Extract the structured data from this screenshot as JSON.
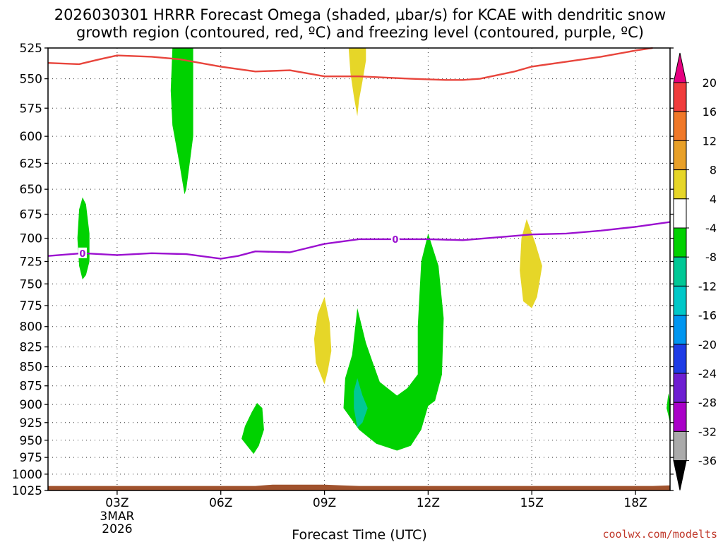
{
  "title_lines": [
    "2026030301 HRRR Forecast Omega (shaded, μbar/s) for KCAE with dendritic snow",
    "growth region (contoured, red, ºC) and freezing level (contoured, purple, ºC)"
  ],
  "credit": "coolwx.com/modelts",
  "chart_data": {
    "type": "heatmap",
    "title": "2026030301 HRRR Forecast Omega (shaded, μbar/s) for KCAE with dendritic snow growth region (contoured, red, ºC) and freezing level (contoured, purple, ºC)",
    "xlabel": "Forecast Time (UTC)",
    "ylabel": "",
    "x_axis": {
      "unit": "forecast hour (hours after 2026030301 run)",
      "range": [
        0,
        18
      ],
      "ticks": [
        {
          "value": 2,
          "label": "03Z",
          "sublabels": [
            "3MAR",
            "2026"
          ]
        },
        {
          "value": 5,
          "label": "06Z",
          "sublabels": []
        },
        {
          "value": 8,
          "label": "09Z",
          "sublabels": []
        },
        {
          "value": 11,
          "label": "12Z",
          "sublabels": []
        },
        {
          "value": 14,
          "label": "15Z",
          "sublabels": []
        },
        {
          "value": 17,
          "label": "18Z",
          "sublabels": []
        }
      ]
    },
    "y_axis": {
      "unit": "hPa",
      "scale": "log-pressure",
      "range": [
        1025,
        525
      ],
      "ticks": [
        525,
        550,
        575,
        600,
        625,
        650,
        675,
        700,
        725,
        750,
        775,
        800,
        825,
        850,
        875,
        900,
        925,
        950,
        975,
        1000,
        1025
      ]
    },
    "grid": true,
    "colorbar": {
      "placement": "right",
      "labels": [
        "20",
        "16",
        "12",
        "8",
        "4",
        "-4",
        "-8",
        "-12",
        "-16",
        "-20",
        "-24",
        "-28",
        "-32",
        "-36"
      ],
      "top_arrow_color": "#e60080",
      "bottom_arrow_color": "#000000",
      "bins": [
        {
          "range": [
            16,
            20
          ],
          "color": "#f03c3c"
        },
        {
          "range": [
            12,
            16
          ],
          "color": "#f07828"
        },
        {
          "range": [
            8,
            12
          ],
          "color": "#e8a028"
        },
        {
          "range": [
            4,
            8
          ],
          "color": "#e6d628"
        },
        {
          "range": [
            -4,
            4
          ],
          "color": "#ffffff"
        },
        {
          "range": [
            -8,
            -4
          ],
          "color": "#00d200"
        },
        {
          "range": [
            -12,
            -8
          ],
          "color": "#00c896"
        },
        {
          "range": [
            -16,
            -12
          ],
          "color": "#00c8c8"
        },
        {
          "range": [
            -20,
            -16
          ],
          "color": "#0096f0"
        },
        {
          "range": [
            -24,
            -20
          ],
          "color": "#1e3ce6"
        },
        {
          "range": [
            -28,
            -24
          ],
          "color": "#6e1ed2"
        },
        {
          "range": [
            -32,
            -28
          ],
          "color": "#aa00c8"
        },
        {
          "range": [
            -36,
            -32
          ],
          "color": "#aaaaaa"
        }
      ]
    },
    "omega_regions": [
      {
        "bin": "-8 to -4",
        "color": "#00d200",
        "outline": [
          [
            3.6,
            525
          ],
          [
            4.2,
            525
          ],
          [
            4.2,
            560
          ],
          [
            4.2,
            600
          ],
          [
            4.1,
            625
          ],
          [
            4,
            650
          ],
          [
            3.95,
            655
          ],
          [
            3.8,
            625
          ],
          [
            3.6,
            590
          ],
          [
            3.55,
            560
          ]
        ]
      },
      {
        "bin": "4 to 8",
        "color": "#e6d628",
        "outline": [
          [
            8.7,
            525
          ],
          [
            9.2,
            525
          ],
          [
            9.2,
            535
          ],
          [
            9.1,
            552
          ],
          [
            9,
            568
          ],
          [
            8.95,
            582
          ],
          [
            8.85,
            565
          ],
          [
            8.75,
            545
          ]
        ]
      },
      {
        "bin": "-8 to -4",
        "color": "#00d200",
        "outline": [
          [
            1,
            658
          ],
          [
            1.1,
            665
          ],
          [
            1.2,
            695
          ],
          [
            1.2,
            725
          ],
          [
            1.1,
            740
          ],
          [
            1,
            745
          ],
          [
            0.9,
            730
          ],
          [
            0.85,
            700
          ],
          [
            0.9,
            670
          ]
        ]
      },
      {
        "bin": "4 to 8",
        "color": "#e6d628",
        "outline": [
          [
            13.85,
            680
          ],
          [
            14.1,
            705
          ],
          [
            14.3,
            730
          ],
          [
            14.15,
            765
          ],
          [
            14,
            778
          ],
          [
            13.75,
            770
          ],
          [
            13.65,
            735
          ],
          [
            13.7,
            700
          ]
        ]
      },
      {
        "bin": "4 to 8",
        "color": "#e6d628",
        "outline": [
          [
            8,
            765
          ],
          [
            8.15,
            795
          ],
          [
            8.2,
            830
          ],
          [
            8.1,
            855
          ],
          [
            8,
            873
          ],
          [
            7.75,
            845
          ],
          [
            7.7,
            815
          ],
          [
            7.8,
            785
          ]
        ]
      },
      {
        "bin": "-8 to -4",
        "color": "#00d200",
        "outline": [
          [
            8.95,
            778
          ],
          [
            9.2,
            820
          ],
          [
            9.4,
            845
          ],
          [
            9.6,
            870
          ],
          [
            10.1,
            888
          ],
          [
            10.4,
            878
          ],
          [
            10.7,
            860
          ],
          [
            10.7,
            800
          ],
          [
            10.8,
            725
          ],
          [
            11,
            695
          ],
          [
            11.3,
            730
          ],
          [
            11.45,
            790
          ],
          [
            11.4,
            860
          ],
          [
            11.2,
            895
          ],
          [
            11,
            902
          ],
          [
            10.8,
            935
          ],
          [
            10.5,
            958
          ],
          [
            10.1,
            965
          ],
          [
            9.5,
            955
          ],
          [
            9,
            935
          ],
          [
            8.55,
            905
          ],
          [
            8.6,
            865
          ],
          [
            8.8,
            835
          ]
        ]
      },
      {
        "bin": "-12 to -8",
        "color": "#00c896",
        "outline": [
          [
            8.95,
            865
          ],
          [
            9.1,
            888
          ],
          [
            9.25,
            905
          ],
          [
            9.1,
            925
          ],
          [
            8.95,
            932
          ],
          [
            8.85,
            905
          ],
          [
            8.85,
            882
          ]
        ]
      },
      {
        "bin": "-8 to -4",
        "color": "#00d200",
        "outline": [
          [
            6.05,
            898
          ],
          [
            6.2,
            905
          ],
          [
            6.25,
            935
          ],
          [
            6.1,
            958
          ],
          [
            5.95,
            970
          ],
          [
            5.6,
            948
          ],
          [
            5.7,
            930
          ],
          [
            5.9,
            910
          ]
        ]
      },
      {
        "bin": "-8 to -4",
        "color": "#00d200",
        "outline": [
          [
            17.95,
            885
          ],
          [
            18,
            895
          ],
          [
            18,
            925
          ],
          [
            17.9,
            905
          ]
        ]
      }
    ],
    "surface_terrain": {
      "color": "#a0522d",
      "top": [
        [
          0,
          1018
        ],
        [
          6,
          1018
        ],
        [
          6.5,
          1016
        ],
        [
          8,
          1016
        ],
        [
          8.5,
          1017
        ],
        [
          9,
          1018
        ],
        [
          17.5,
          1018
        ],
        [
          18,
          1017
        ]
      ]
    },
    "series": [
      {
        "name": "dendritic snow growth region (red)",
        "color": "#e8453c",
        "points": [
          [
            0,
            537
          ],
          [
            0.9,
            538
          ],
          [
            1.5,
            534
          ],
          [
            2,
            531
          ],
          [
            3,
            532
          ],
          [
            3.8,
            534
          ],
          [
            5,
            540
          ],
          [
            6,
            544
          ],
          [
            7,
            543
          ],
          [
            8,
            548
          ],
          [
            9,
            548
          ],
          [
            10.5,
            550
          ],
          [
            11.5,
            551
          ],
          [
            12,
            551
          ],
          [
            12.5,
            550
          ],
          [
            13.5,
            544
          ],
          [
            14,
            540
          ],
          [
            15,
            536
          ],
          [
            16,
            532
          ],
          [
            17,
            527
          ],
          [
            17.5,
            525
          ]
        ]
      },
      {
        "name": "freezing level (purple)",
        "color": "#9b10d0",
        "label": "0",
        "label_points": [
          [
            1,
            716
          ],
          [
            10.05,
            701
          ]
        ],
        "points": [
          [
            0,
            719
          ],
          [
            1,
            716
          ],
          [
            2,
            718
          ],
          [
            3,
            716
          ],
          [
            4,
            717
          ],
          [
            5,
            722
          ],
          [
            5.5,
            719
          ],
          [
            6,
            714
          ],
          [
            7,
            715
          ],
          [
            8,
            706
          ],
          [
            9,
            701
          ],
          [
            10,
            701
          ],
          [
            11,
            701
          ],
          [
            12,
            702
          ],
          [
            13,
            699
          ],
          [
            14,
            696
          ],
          [
            15,
            695
          ],
          [
            16,
            692
          ],
          [
            17,
            688
          ],
          [
            18,
            683
          ]
        ]
      }
    ]
  }
}
